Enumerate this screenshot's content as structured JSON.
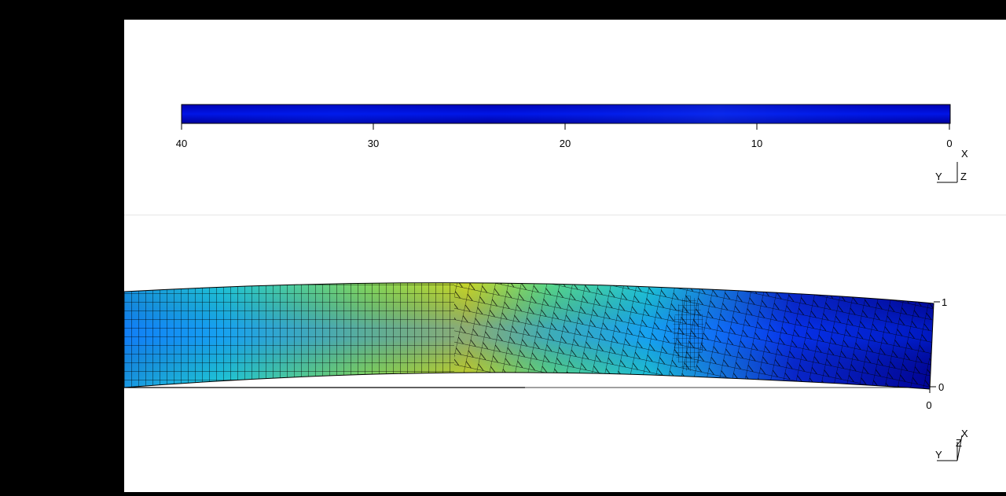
{
  "top_view": {
    "axis_ticks": [
      "40",
      "30",
      "20",
      "10",
      "0"
    ],
    "triad": {
      "x": "X",
      "y": "Y",
      "z": "Z"
    },
    "colors": {
      "dark_blue": "#0000a8",
      "mid_blue": "#0010e0",
      "light_blue": "#0a3cff"
    }
  },
  "bottom_view": {
    "side_ticks": [
      "1",
      "0"
    ],
    "bottom_tick": "0",
    "triad": {
      "x": "X",
      "y": "Y",
      "z": "Z"
    },
    "colors": {
      "cyan": "#22d6e8",
      "yellow": "#d8e628",
      "blue": "#0a28d8",
      "dark_blue": "#00006a"
    }
  }
}
